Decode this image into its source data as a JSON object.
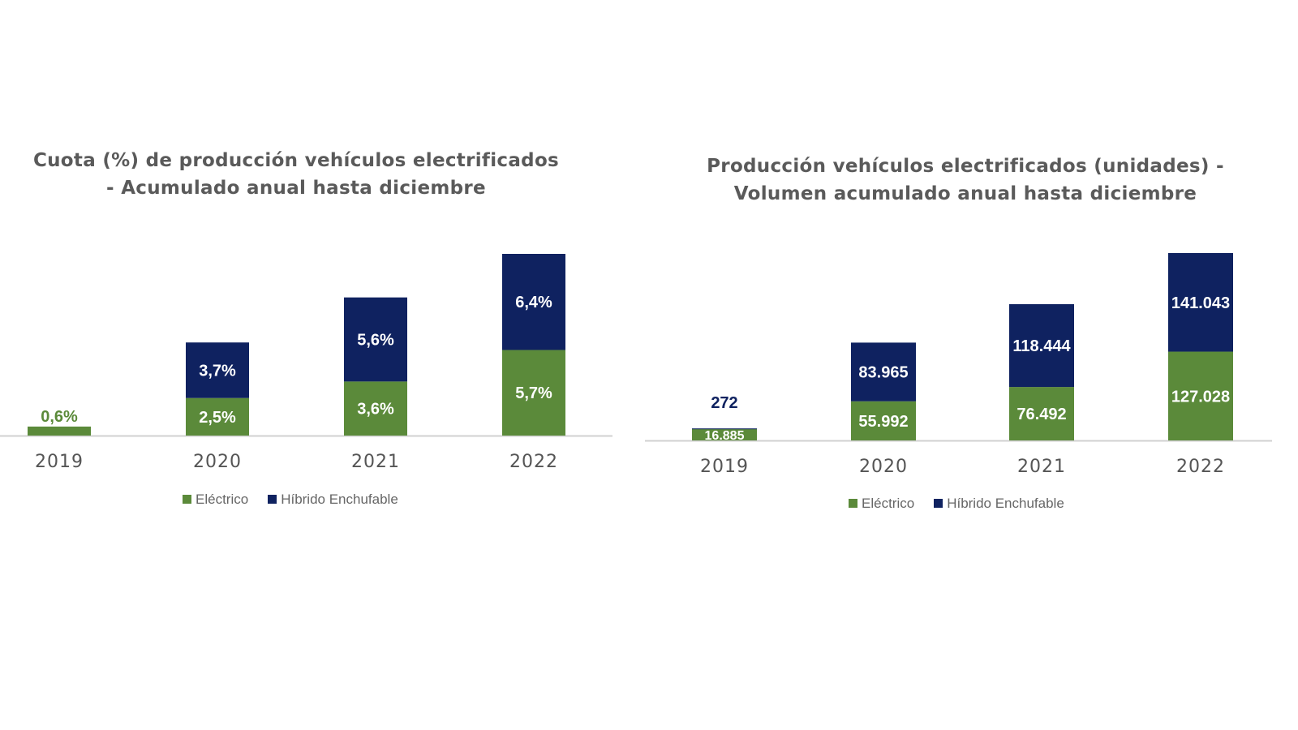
{
  "colors": {
    "electric": "#5b8a3a",
    "hybrid": "#0f2260",
    "axis": "#d0d0d0",
    "tick": "#555555"
  },
  "chart_data": [
    {
      "type": "bar",
      "stacked": true,
      "title": "Cuota (%) de producción vehículos electrificados - Acumulado anual hasta diciembre",
      "title_lines": [
        "Cuota (%) de producción vehículos electrificados",
        "- Acumulado anual hasta diciembre"
      ],
      "categories": [
        "2019",
        "2020",
        "2021",
        "2022"
      ],
      "series": [
        {
          "name": "Eléctrico",
          "values": [
            0.6,
            2.5,
            3.6,
            5.7
          ],
          "labels": [
            "0,6%",
            "2,5%",
            "3,6%",
            "5,7%"
          ]
        },
        {
          "name": "Híbrido Enchufable",
          "values": [
            null,
            3.7,
            5.6,
            6.4
          ],
          "labels": [
            "",
            "3,7%",
            "5,6%",
            "6,4%"
          ]
        }
      ],
      "ylim": [
        0,
        12.1
      ],
      "grid": false,
      "legend": "bottom"
    },
    {
      "type": "bar",
      "stacked": true,
      "title": "Producción vehículos electrificados (unidades) - Volumen acumulado anual hasta diciembre",
      "title_lines": [
        "Producción vehículos electrificados (unidades) -",
        "Volumen acumulado anual hasta diciembre"
      ],
      "categories": [
        "2019",
        "2020",
        "2021",
        "2022"
      ],
      "series": [
        {
          "name": "Eléctrico",
          "values": [
            16885,
            55992,
            76492,
            127028
          ],
          "labels": [
            "16.885",
            "55.992",
            "76.492",
            "127.028"
          ]
        },
        {
          "name": "Híbrido Enchufable",
          "values": [
            272,
            83965,
            118444,
            141043
          ],
          "labels": [
            "272",
            "83.965",
            "118.444",
            "141.043"
          ]
        }
      ],
      "ylim": [
        0,
        268071
      ],
      "grid": false,
      "legend": "bottom"
    }
  ]
}
